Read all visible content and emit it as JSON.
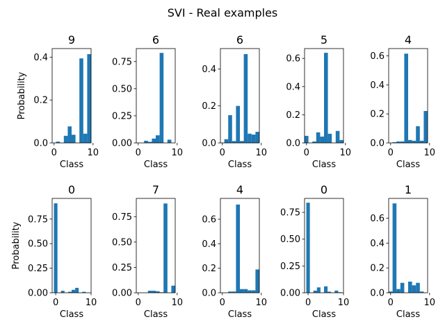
{
  "chart_data": {
    "type": "bar",
    "title": "SVI - Real examples",
    "bar_color": "#1f77b4",
    "xlabel": "Class",
    "ylabel": "Probability",
    "x_categories": [
      0,
      1,
      2,
      3,
      4,
      5,
      6,
      7,
      8,
      9
    ],
    "panels": [
      {
        "title": "9",
        "ylim": [
          0,
          0.44
        ],
        "yticks": [
          0.0,
          0.2,
          0.4
        ],
        "ytick_labels": [
          "0.0",
          "0.2",
          "0.4"
        ],
        "xlim": [
          -0.5,
          9.5
        ],
        "xticks": [
          0,
          10
        ],
        "xtick_labels": [
          "0",
          "10"
        ],
        "values": [
          0.0,
          0.006,
          0.0,
          0.033,
          0.077,
          0.038,
          0.0,
          0.394,
          0.043,
          0.414
        ]
      },
      {
        "title": "6",
        "ylim": [
          0,
          0.87
        ],
        "yticks": [
          0.0,
          0.25,
          0.5,
          0.75
        ],
        "ytick_labels": [
          "0.00",
          "0.25",
          "0.50",
          "0.75"
        ],
        "xlim": [
          -0.5,
          9.5
        ],
        "xticks": [
          0,
          10
        ],
        "xtick_labels": [
          "0",
          "10"
        ],
        "values": [
          0.0,
          0.0,
          0.02,
          0.01,
          0.04,
          0.07,
          0.83,
          0.0,
          0.03,
          0.0
        ]
      },
      {
        "title": "6",
        "ylim": [
          0,
          0.51
        ],
        "yticks": [
          0.0,
          0.2,
          0.4
        ],
        "ytick_labels": [
          "0.0",
          "0.2",
          "0.4"
        ],
        "xlim": [
          -0.5,
          9.5
        ],
        "xticks": [
          0,
          10
        ],
        "xtick_labels": [
          "0",
          "10"
        ],
        "values": [
          0.0,
          0.02,
          0.15,
          0.01,
          0.2,
          0.01,
          0.48,
          0.05,
          0.045,
          0.06
        ]
      },
      {
        "title": "5",
        "ylim": [
          0,
          0.67
        ],
        "yticks": [
          0.0,
          0.2,
          0.4,
          0.6
        ],
        "ytick_labels": [
          "0.0",
          "0.2",
          "0.4",
          "0.6"
        ],
        "xlim": [
          -0.5,
          9.5
        ],
        "xticks": [
          0,
          10
        ],
        "xtick_labels": [
          "0",
          "10"
        ],
        "values": [
          0.05,
          0.0,
          0.01,
          0.075,
          0.045,
          0.64,
          0.065,
          0.0,
          0.085,
          0.02
        ]
      },
      {
        "title": "4",
        "ylim": [
          0,
          0.65
        ],
        "yticks": [
          0.0,
          0.2,
          0.4,
          0.6
        ],
        "ytick_labels": [
          "0.0",
          "0.2",
          "0.4",
          "0.6"
        ],
        "xlim": [
          -0.5,
          9.5
        ],
        "xticks": [
          0,
          10
        ],
        "xtick_labels": [
          "0",
          "10"
        ],
        "values": [
          0.0,
          0.005,
          0.01,
          0.01,
          0.615,
          0.02,
          0.015,
          0.115,
          0.015,
          0.22
        ]
      },
      {
        "title": "0",
        "ylim": [
          0,
          0.96
        ],
        "yticks": [
          0.0,
          0.25,
          0.5,
          0.75
        ],
        "ytick_labels": [
          "0.00",
          "0.25",
          "0.50",
          "0.75"
        ],
        "xlim": [
          -1.0,
          10.0
        ],
        "xticks": [
          0,
          10
        ],
        "xtick_labels": [
          "0",
          "10"
        ],
        "values": [
          0.91,
          0.0,
          0.02,
          0.0,
          0.01,
          0.03,
          0.05,
          0.0,
          0.01,
          0.0
        ]
      },
      {
        "title": "7",
        "ylim": [
          0,
          0.93
        ],
        "yticks": [
          0.0,
          0.25,
          0.5,
          0.75
        ],
        "ytick_labels": [
          "0.00",
          "0.25",
          "0.50",
          "0.75"
        ],
        "xlim": [
          -0.5,
          9.5
        ],
        "xticks": [
          0,
          10
        ],
        "xtick_labels": [
          "0",
          "10"
        ],
        "values": [
          0.0,
          0.0,
          0.0,
          0.02,
          0.02,
          0.015,
          0.005,
          0.88,
          0.0,
          0.07
        ]
      },
      {
        "title": "4",
        "ylim": [
          0,
          0.77
        ],
        "yticks": [
          0.0,
          0.2,
          0.4,
          0.6
        ],
        "ytick_labels": [
          "0.0",
          "0.2",
          "0.4",
          "0.6"
        ],
        "xlim": [
          -0.5,
          9.5
        ],
        "xticks": [
          0,
          10
        ],
        "xtick_labels": [
          "0",
          "10"
        ],
        "values": [
          0.0,
          0.0,
          0.01,
          0.01,
          0.72,
          0.03,
          0.03,
          0.02,
          0.02,
          0.19
        ]
      },
      {
        "title": "0",
        "ylim": [
          0,
          0.88
        ],
        "yticks": [
          0.0,
          0.25,
          0.5,
          0.75
        ],
        "ytick_labels": [
          "0.00",
          "0.25",
          "0.50",
          "0.75"
        ],
        "xlim": [
          -1.0,
          10.0
        ],
        "xticks": [
          0,
          10
        ],
        "xtick_labels": [
          "0",
          "10"
        ],
        "values": [
          0.84,
          0.0,
          0.02,
          0.05,
          0.0,
          0.06,
          0.01,
          0.0,
          0.02,
          0.005
        ]
      },
      {
        "title": "1",
        "ylim": [
          0,
          0.76
        ],
        "yticks": [
          0.0,
          0.2,
          0.4,
          0.6
        ],
        "ytick_labels": [
          "0.0",
          "0.2",
          "0.4",
          "0.6"
        ],
        "xlim": [
          -0.5,
          9.5
        ],
        "xticks": [
          0,
          10
        ],
        "xtick_labels": [
          "0",
          "10"
        ],
        "values": [
          0.01,
          0.72,
          0.03,
          0.08,
          0.0,
          0.09,
          0.06,
          0.08,
          0.01,
          0.0
        ]
      }
    ]
  }
}
